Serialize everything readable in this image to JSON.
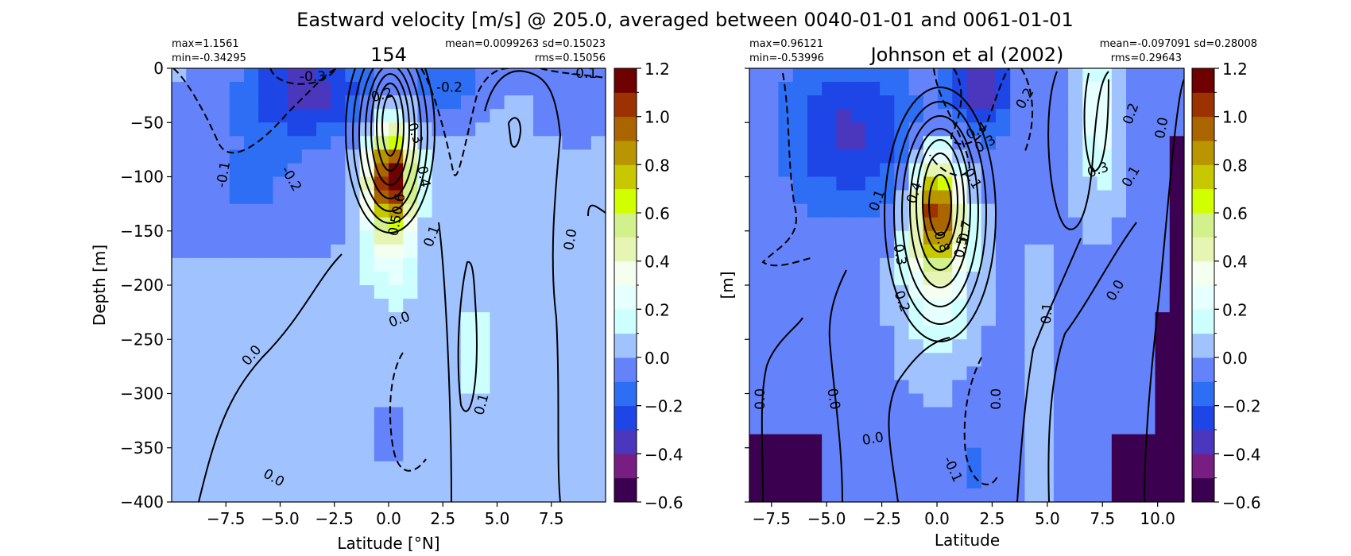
{
  "chart_data": {
    "type": "heatmap",
    "title": "Eastward velocity [m/s] @ 205.0, averaged between 0040-01-01 and 0061-01-01",
    "colorbar": {
      "ticks": [
        "1.2",
        "1.0",
        "0.8",
        "0.6",
        "0.4",
        "0.2",
        "0.0",
        "−0.2",
        "−0.4",
        "−0.6"
      ],
      "levels": [
        -0.6,
        -0.5,
        -0.4,
        -0.3,
        -0.2,
        -0.1,
        0.0,
        0.1,
        0.2,
        0.3,
        0.4,
        0.5,
        0.6,
        0.7,
        0.8,
        0.9,
        1.0,
        1.1,
        1.2
      ],
      "colors": [
        "#3c0050",
        "#781e82",
        "#4b37be",
        "#1e46e6",
        "#2d6ef5",
        "#6482fa",
        "#a0c3ff",
        "#cdffff",
        "#e6ffff",
        "#f5fff0",
        "#e6f5b4",
        "#d2f08c",
        "#d2ff00",
        "#c8c800",
        "#b99600",
        "#aa6400",
        "#9b3200",
        "#6e0000"
      ]
    },
    "panels": [
      {
        "title": "154",
        "stats_left": [
          "max=1.1561",
          "min=-0.34295"
        ],
        "stats_right": [
          "mean=0.0099263 sd=0.15023",
          "rms=0.15056"
        ],
        "xlabel": "Latitude [°N]",
        "ylabel": "Depth [m]",
        "xlim": [
          -10,
          10
        ],
        "ylim": [
          -400,
          0
        ],
        "xticks": [
          "−7.5",
          "−5.0",
          "−2.5",
          "0.0",
          "2.5",
          "5.0",
          "7.5"
        ],
        "yticks": [
          "0",
          "−50",
          "−100",
          "−150",
          "−200",
          "−250",
          "−300",
          "−350",
          "−400"
        ],
        "max": 1.1561,
        "min": -0.34295,
        "contour_labels": [
          {
            "text": "-0.3",
            "lat": -3.5,
            "depth": -8,
            "rot": 0
          },
          {
            "text": "-0.2",
            "lat": 2.8,
            "depth": -18,
            "rot": 0
          },
          {
            "text": "-0.1",
            "lat": 9.0,
            "depth": -5,
            "rot": 0
          },
          {
            "text": "0.2",
            "lat": -0.3,
            "depth": -25,
            "rot": -15
          },
          {
            "text": "-0.1",
            "lat": -7.6,
            "depth": -98,
            "rot": -80
          },
          {
            "text": "-0.2",
            "lat": -4.5,
            "depth": -102,
            "rot": 60
          },
          {
            "text": "0.3",
            "lat": 1.2,
            "depth": -60,
            "rot": 70
          },
          {
            "text": "0.4",
            "lat": 1.6,
            "depth": -100,
            "rot": 80
          },
          {
            "text": "0.50.6",
            "lat": 0.4,
            "depth": -135,
            "rot": -80
          },
          {
            "text": "0.1",
            "lat": 2.0,
            "depth": -155,
            "rot": -70
          },
          {
            "text": "0.0",
            "lat": 8.4,
            "depth": -158,
            "rot": -80
          },
          {
            "text": "0.0",
            "lat": 0.5,
            "depth": -232,
            "rot": -20
          },
          {
            "text": "0.0",
            "lat": -6.3,
            "depth": -265,
            "rot": -50
          },
          {
            "text": "0.1",
            "lat": 4.3,
            "depth": -310,
            "rot": -75
          },
          {
            "text": "0.0",
            "lat": -5.3,
            "depth": -378,
            "rot": 30
          }
        ]
      },
      {
        "title": "Johnson et al (2002)",
        "stats_left": [
          "max=0.96121",
          "min=-0.53996"
        ],
        "stats_right": [
          "mean=-0.097091 sd=0.28008",
          "rms=0.29643"
        ],
        "xlabel": "Latitude",
        "ylabel": "[m]",
        "xlim": [
          -8.5,
          11.2
        ],
        "ylim": [
          -400,
          0
        ],
        "xticks": [
          "−7.5",
          "−5.0",
          "−2.5",
          "0.0",
          "2.5",
          "5.0",
          "7.5",
          "10.0"
        ],
        "max": 0.96121,
        "min": -0.53996,
        "contour_labels": [
          {
            "text": "0.2",
            "lat": 4.0,
            "depth": -28,
            "rot": -60
          },
          {
            "text": "0.4",
            "lat": 1.8,
            "depth": -58,
            "rot": -30
          },
          {
            "text": "0.3",
            "lat": 2.2,
            "depth": -70,
            "rot": -30
          },
          {
            "text": "0.2",
            "lat": 8.8,
            "depth": -42,
            "rot": -70
          },
          {
            "text": "0.0",
            "lat": 10.2,
            "depth": -55,
            "rot": -80
          },
          {
            "text": "0.3",
            "lat": 7.3,
            "depth": -94,
            "rot": -20
          },
          {
            "text": "0.1",
            "lat": 8.8,
            "depth": -100,
            "rot": -60
          },
          {
            "text": "0.1",
            "lat": 1.6,
            "depth": -102,
            "rot": 60
          },
          {
            "text": "0.1",
            "lat": -2.7,
            "depth": -122,
            "rot": -70
          },
          {
            "text": "0.4",
            "lat": -1.0,
            "depth": -115,
            "rot": -70
          },
          {
            "text": "0.8",
            "lat": 0.2,
            "depth": -160,
            "rot": 70
          },
          {
            "text": "0.7",
            "lat": 1.3,
            "depth": -150,
            "rot": -80
          },
          {
            "text": "0.5",
            "lat": 1.1,
            "depth": -165,
            "rot": -80
          },
          {
            "text": "0.3",
            "lat": -1.7,
            "depth": -172,
            "rot": 80
          },
          {
            "text": "0.2",
            "lat": -1.6,
            "depth": -215,
            "rot": 70
          },
          {
            "text": "0.0",
            "lat": 8.1,
            "depth": -205,
            "rot": -60
          },
          {
            "text": "0.1",
            "lat": 5.0,
            "depth": -226,
            "rot": -85
          },
          {
            "text": "0.0",
            "lat": -8.0,
            "depth": -305,
            "rot": -90
          },
          {
            "text": "0.0",
            "lat": -4.7,
            "depth": -305,
            "rot": 80
          },
          {
            "text": "0.0",
            "lat": 2.7,
            "depth": -305,
            "rot": -90
          },
          {
            "text": "0.0",
            "lat": -2.9,
            "depth": -342,
            "rot": -10
          },
          {
            "text": "-0.1",
            "lat": 0.7,
            "depth": -370,
            "rot": 65
          }
        ]
      }
    ]
  }
}
